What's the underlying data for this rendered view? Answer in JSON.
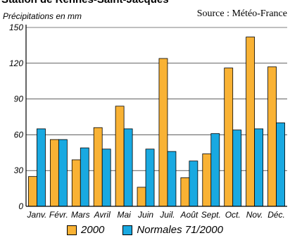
{
  "chart_data": {
    "type": "bar",
    "title": "Station de Rennes-Saint-Jacques",
    "source": "Source : Météo-France",
    "ylabel": "Précipitations en mm",
    "xlabel": "",
    "categories": [
      "Janv.",
      "Févr.",
      "Mars",
      "Avril",
      "Mai",
      "Juin",
      "Juil.",
      "Août",
      "Sept.",
      "Oct.",
      "Nov.",
      "Déc."
    ],
    "yticks": [
      "0",
      "30",
      "60",
      "90",
      "120",
      "150"
    ],
    "ylim": [
      0,
      150
    ],
    "grid": true,
    "legend_position": "bottom",
    "series": [
      {
        "name": "2000",
        "color": "#f9b234",
        "values": [
          25,
          56,
          39,
          66,
          84,
          16,
          124,
          24,
          44,
          116,
          142,
          117
        ]
      },
      {
        "name": "Normales 71/2000",
        "color": "#19a9e1",
        "values": [
          65,
          56,
          49,
          48,
          65,
          48,
          46,
          38,
          61,
          64,
          65,
          70
        ]
      }
    ]
  }
}
